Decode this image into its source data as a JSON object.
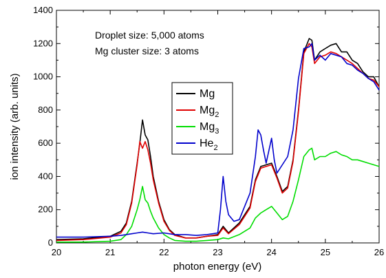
{
  "chart_data": {
    "type": "line",
    "title": "",
    "xlabel": "photon energy (eV)",
    "ylabel": "ion intensity (arb. units)",
    "xlim": [
      20,
      26
    ],
    "ylim": [
      0,
      1400
    ],
    "xticks": [
      20,
      21,
      22,
      23,
      24,
      25,
      26
    ],
    "yticks": [
      0,
      200,
      400,
      600,
      800,
      1000,
      1200,
      1400
    ],
    "grid": false,
    "legend_position": "center",
    "annotations": [
      "Droplet size: 5,000 atoms",
      "Mg cluster size: 3 atoms"
    ],
    "series": [
      {
        "name": "Mg",
        "name_base": "Mg",
        "name_sub": "",
        "color": "#000000",
        "x": [
          20.0,
          20.5,
          21.0,
          21.2,
          21.3,
          21.4,
          21.5,
          21.55,
          21.6,
          21.65,
          21.7,
          21.75,
          21.8,
          21.9,
          22.0,
          22.1,
          22.2,
          22.4,
          22.6,
          22.8,
          23.0,
          23.1,
          23.2,
          23.4,
          23.6,
          23.7,
          23.8,
          23.9,
          24.0,
          24.1,
          24.2,
          24.3,
          24.4,
          24.5,
          24.6,
          24.7,
          24.75,
          24.8,
          24.9,
          25.0,
          25.1,
          25.2,
          25.3,
          25.4,
          25.5,
          25.6,
          25.7,
          25.8,
          25.9,
          26.0
        ],
        "y": [
          20,
          25,
          40,
          70,
          120,
          250,
          480,
          600,
          740,
          650,
          620,
          520,
          400,
          250,
          140,
          80,
          50,
          30,
          30,
          40,
          50,
          100,
          60,
          120,
          220,
          380,
          460,
          470,
          480,
          400,
          310,
          340,
          500,
          800,
          1150,
          1230,
          1220,
          1100,
          1150,
          1170,
          1190,
          1200,
          1150,
          1150,
          1100,
          1080,
          1030,
          1000,
          1000,
          940
        ]
      },
      {
        "name": "Mg2",
        "name_base": "Mg",
        "name_sub": "2",
        "color": "#e00000",
        "x": [
          20.0,
          20.5,
          21.0,
          21.2,
          21.3,
          21.4,
          21.5,
          21.55,
          21.6,
          21.65,
          21.7,
          21.75,
          21.8,
          21.9,
          22.0,
          22.1,
          22.2,
          22.4,
          22.6,
          22.8,
          23.0,
          23.1,
          23.2,
          23.4,
          23.6,
          23.7,
          23.8,
          23.9,
          24.0,
          24.1,
          24.2,
          24.3,
          24.4,
          24.5,
          24.6,
          24.7,
          24.75,
          24.8,
          24.9,
          25.0,
          25.1,
          25.2,
          25.3,
          25.4,
          25.5,
          25.6,
          25.7,
          25.8,
          25.9,
          26.0
        ],
        "y": [
          15,
          20,
          35,
          60,
          110,
          240,
          470,
          610,
          570,
          610,
          560,
          480,
          380,
          240,
          130,
          75,
          45,
          30,
          30,
          40,
          45,
          90,
          55,
          110,
          210,
          370,
          450,
          460,
          470,
          390,
          300,
          330,
          490,
          790,
          1140,
          1200,
          1180,
          1080,
          1120,
          1130,
          1150,
          1140,
          1120,
          1100,
          1080,
          1050,
          1020,
          990,
          980,
          940
        ]
      },
      {
        "name": "Mg3",
        "name_base": "Mg",
        "name_sub": "3",
        "color": "#00dd00",
        "x": [
          20.0,
          20.5,
          21.0,
          21.2,
          21.3,
          21.4,
          21.5,
          21.55,
          21.6,
          21.65,
          21.7,
          21.75,
          21.8,
          21.9,
          22.0,
          22.1,
          22.2,
          22.4,
          22.6,
          22.8,
          23.0,
          23.1,
          23.2,
          23.4,
          23.6,
          23.7,
          23.8,
          23.9,
          24.0,
          24.1,
          24.2,
          24.3,
          24.4,
          24.5,
          24.6,
          24.7,
          24.75,
          24.8,
          24.9,
          25.0,
          25.1,
          25.2,
          25.3,
          25.4,
          25.5,
          25.6,
          25.7,
          25.8,
          25.9,
          26.0
        ],
        "y": [
          5,
          5,
          10,
          20,
          50,
          100,
          200,
          260,
          340,
          260,
          240,
          190,
          150,
          90,
          50,
          30,
          15,
          10,
          10,
          15,
          20,
          30,
          25,
          50,
          90,
          150,
          180,
          200,
          220,
          180,
          140,
          160,
          250,
          380,
          520,
          560,
          570,
          500,
          520,
          520,
          540,
          550,
          530,
          520,
          500,
          500,
          490,
          480,
          470,
          460
        ]
      },
      {
        "name": "He2",
        "name_base": "He",
        "name_sub": "2",
        "color": "#0000cc",
        "x": [
          20.0,
          20.5,
          21.0,
          21.2,
          21.3,
          21.4,
          21.5,
          21.6,
          21.7,
          21.8,
          22.0,
          22.2,
          22.4,
          22.6,
          22.8,
          23.0,
          23.05,
          23.1,
          23.15,
          23.2,
          23.3,
          23.4,
          23.6,
          23.7,
          23.75,
          23.8,
          23.85,
          23.9,
          24.0,
          24.05,
          24.1,
          24.2,
          24.3,
          24.4,
          24.5,
          24.6,
          24.7,
          24.75,
          24.8,
          24.9,
          25.0,
          25.1,
          25.2,
          25.3,
          25.4,
          25.5,
          25.6,
          25.7,
          25.8,
          25.9,
          26.0
        ],
        "y": [
          35,
          35,
          40,
          45,
          50,
          55,
          60,
          65,
          60,
          55,
          60,
          50,
          50,
          45,
          50,
          60,
          200,
          400,
          250,
          170,
          130,
          140,
          300,
          520,
          680,
          650,
          560,
          480,
          630,
          500,
          420,
          470,
          520,
          680,
          990,
          1170,
          1180,
          1200,
          1100,
          1130,
          1100,
          1140,
          1130,
          1120,
          1080,
          1070,
          1040,
          1020,
          990,
          970,
          920
        ]
      }
    ]
  }
}
